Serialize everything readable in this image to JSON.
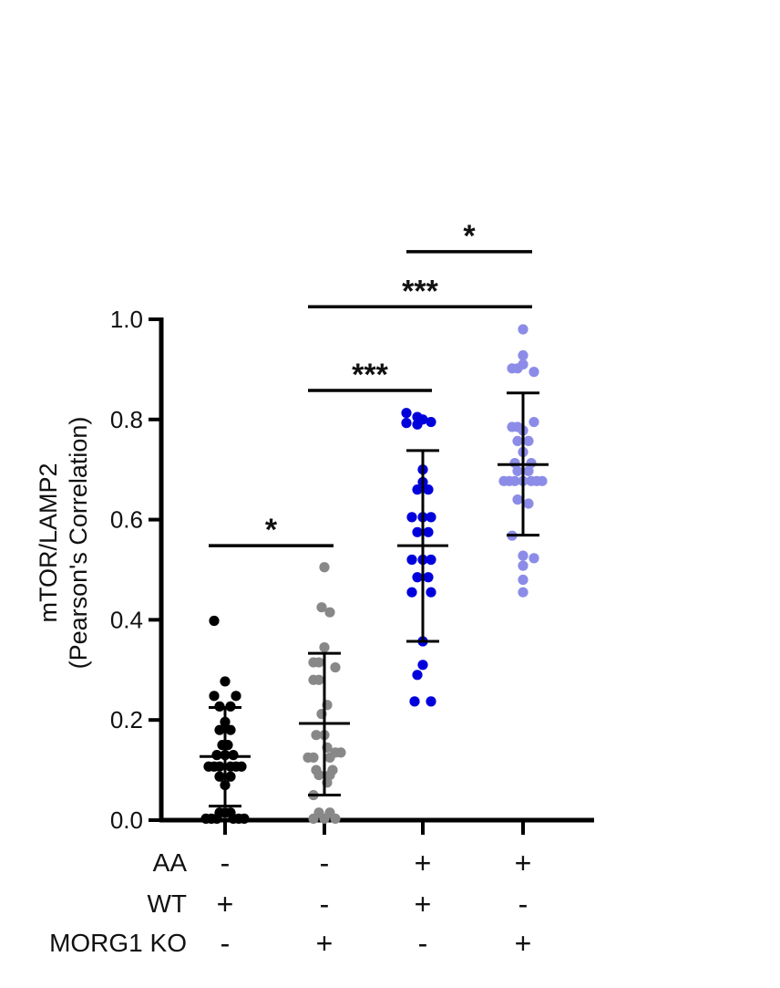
{
  "chart_data": {
    "type": "scatter",
    "title": "",
    "ylabel_line1": "mTOR/LAMP2",
    "ylabel_line2": "(Pearson's Correlation)",
    "ylim": [
      0,
      1.0
    ],
    "yticks": [
      "0.0",
      "0.2",
      "0.4",
      "0.6",
      "0.8",
      "1.0"
    ],
    "ytick_values": [
      0,
      0.2,
      0.4,
      0.6,
      0.8,
      1.0
    ],
    "grid": false,
    "groups": [
      {
        "color": "#000000",
        "mean": 0.127,
        "sd_low": 0.028,
        "sd_high": 0.225,
        "points": [
          {
            "x": -0.6,
            "y": 0.398
          },
          {
            "x": 0.0,
            "y": 0.277
          },
          {
            "x": -0.6,
            "y": 0.248
          },
          {
            "x": 0.6,
            "y": 0.248
          },
          {
            "x": -0.3,
            "y": 0.227
          },
          {
            "x": 0.3,
            "y": 0.227
          },
          {
            "x": 0.0,
            "y": 0.196
          },
          {
            "x": -0.3,
            "y": 0.18
          },
          {
            "x": 0.3,
            "y": 0.18
          },
          {
            "x": -0.15,
            "y": 0.15
          },
          {
            "x": 0.15,
            "y": 0.15
          },
          {
            "x": -0.45,
            "y": 0.13
          },
          {
            "x": 0.0,
            "y": 0.13
          },
          {
            "x": 0.45,
            "y": 0.13
          },
          {
            "x": -0.9,
            "y": 0.107
          },
          {
            "x": -0.6,
            "y": 0.107
          },
          {
            "x": -0.3,
            "y": 0.107
          },
          {
            "x": 0.3,
            "y": 0.107
          },
          {
            "x": 0.6,
            "y": 0.107
          },
          {
            "x": 0.9,
            "y": 0.107
          },
          {
            "x": -0.3,
            "y": 0.087
          },
          {
            "x": 0.3,
            "y": 0.087
          },
          {
            "x": 0.0,
            "y": 0.07
          },
          {
            "x": -0.3,
            "y": 0.015
          },
          {
            "x": 0.0,
            "y": 0.015
          },
          {
            "x": 0.3,
            "y": 0.015
          },
          {
            "x": -1.05,
            "y": 0.003
          },
          {
            "x": -0.75,
            "y": 0.003
          },
          {
            "x": -0.45,
            "y": 0.003
          },
          {
            "x": 0.45,
            "y": 0.003
          },
          {
            "x": 0.75,
            "y": 0.003
          },
          {
            "x": 1.05,
            "y": 0.003
          }
        ]
      },
      {
        "color": "#888888",
        "mean": 0.193,
        "sd_low": 0.05,
        "sd_high": 0.333,
        "points": [
          {
            "x": 0.0,
            "y": 0.505
          },
          {
            "x": -0.15,
            "y": 0.425
          },
          {
            "x": 0.3,
            "y": 0.415
          },
          {
            "x": 0.0,
            "y": 0.345
          },
          {
            "x": -0.6,
            "y": 0.315
          },
          {
            "x": -0.3,
            "y": 0.315
          },
          {
            "x": 0.6,
            "y": 0.305
          },
          {
            "x": -0.6,
            "y": 0.28
          },
          {
            "x": -0.3,
            "y": 0.28
          },
          {
            "x": 0.15,
            "y": 0.23
          },
          {
            "x": -0.15,
            "y": 0.212
          },
          {
            "x": -0.45,
            "y": 0.17
          },
          {
            "x": 0.0,
            "y": 0.17
          },
          {
            "x": 0.15,
            "y": 0.145
          },
          {
            "x": 0.6,
            "y": 0.135
          },
          {
            "x": -0.9,
            "y": 0.125
          },
          {
            "x": -0.6,
            "y": 0.125
          },
          {
            "x": 0.3,
            "y": 0.125
          },
          {
            "x": 0.9,
            "y": 0.135
          },
          {
            "x": -0.45,
            "y": 0.1
          },
          {
            "x": 0.45,
            "y": 0.1
          },
          {
            "x": -0.3,
            "y": 0.09
          },
          {
            "x": 0.3,
            "y": 0.09
          },
          {
            "x": 0.15,
            "y": 0.075
          },
          {
            "x": -0.6,
            "y": 0.05
          },
          {
            "x": -0.3,
            "y": 0.015
          },
          {
            "x": 0.3,
            "y": 0.015
          },
          {
            "x": -0.6,
            "y": 0.003
          },
          {
            "x": 0.0,
            "y": 0.003
          },
          {
            "x": 0.6,
            "y": 0.003
          }
        ]
      },
      {
        "color": "#0000dd",
        "mean": 0.548,
        "sd_low": 0.357,
        "sd_high": 0.738,
        "points": [
          {
            "x": -0.9,
            "y": 0.813
          },
          {
            "x": -0.3,
            "y": 0.805
          },
          {
            "x": 0.0,
            "y": 0.8
          },
          {
            "x": 0.45,
            "y": 0.795
          },
          {
            "x": -0.9,
            "y": 0.793
          },
          {
            "x": -0.3,
            "y": 0.79
          },
          {
            "x": 0.0,
            "y": 0.7
          },
          {
            "x": 0.0,
            "y": 0.675
          },
          {
            "x": -0.3,
            "y": 0.66
          },
          {
            "x": 0.3,
            "y": 0.66
          },
          {
            "x": -0.6,
            "y": 0.605
          },
          {
            "x": 0.0,
            "y": 0.605
          },
          {
            "x": 0.45,
            "y": 0.605
          },
          {
            "x": -0.3,
            "y": 0.575
          },
          {
            "x": 0.3,
            "y": 0.575
          },
          {
            "x": -0.6,
            "y": 0.52
          },
          {
            "x": 0.0,
            "y": 0.52
          },
          {
            "x": 0.45,
            "y": 0.52
          },
          {
            "x": -0.3,
            "y": 0.485
          },
          {
            "x": 0.3,
            "y": 0.485
          },
          {
            "x": -0.6,
            "y": 0.455
          },
          {
            "x": 0.45,
            "y": 0.455
          },
          {
            "x": 0.0,
            "y": 0.357
          },
          {
            "x": 0.0,
            "y": 0.31
          },
          {
            "x": -0.3,
            "y": 0.29
          },
          {
            "x": -0.45,
            "y": 0.237
          },
          {
            "x": 0.45,
            "y": 0.237
          }
        ]
      },
      {
        "color": "#8c8ce8",
        "mean": 0.71,
        "sd_low": 0.569,
        "sd_high": 0.853,
        "points": [
          {
            "x": 0.0,
            "y": 0.98
          },
          {
            "x": 0.0,
            "y": 0.928
          },
          {
            "x": 0.0,
            "y": 0.91
          },
          {
            "x": -0.6,
            "y": 0.902
          },
          {
            "x": -0.3,
            "y": 0.902
          },
          {
            "x": 0.6,
            "y": 0.895
          },
          {
            "x": -0.6,
            "y": 0.785
          },
          {
            "x": -0.3,
            "y": 0.785
          },
          {
            "x": 0.6,
            "y": 0.795
          },
          {
            "x": 0.0,
            "y": 0.778
          },
          {
            "x": -0.3,
            "y": 0.757
          },
          {
            "x": 0.3,
            "y": 0.757
          },
          {
            "x": 0.0,
            "y": 0.735
          },
          {
            "x": -0.45,
            "y": 0.713
          },
          {
            "x": 0.45,
            "y": 0.713
          },
          {
            "x": -0.3,
            "y": 0.697
          },
          {
            "x": 0.3,
            "y": 0.697
          },
          {
            "x": -1.05,
            "y": 0.677
          },
          {
            "x": -0.75,
            "y": 0.677
          },
          {
            "x": -0.45,
            "y": 0.677
          },
          {
            "x": 0.0,
            "y": 0.677
          },
          {
            "x": 0.45,
            "y": 0.677
          },
          {
            "x": 0.75,
            "y": 0.677
          },
          {
            "x": 1.05,
            "y": 0.677
          },
          {
            "x": -0.3,
            "y": 0.64
          },
          {
            "x": 0.3,
            "y": 0.632
          },
          {
            "x": -0.6,
            "y": 0.568
          },
          {
            "x": 0.0,
            "y": 0.528
          },
          {
            "x": 0.6,
            "y": 0.523
          },
          {
            "x": 0.0,
            "y": 0.508
          },
          {
            "x": 0.0,
            "y": 0.48
          },
          {
            "x": 0.0,
            "y": 0.455
          }
        ]
      }
    ],
    "significance": [
      {
        "from": 1,
        "to": 2,
        "label": "*",
        "y": 0.548
      },
      {
        "from": 2,
        "to": 3,
        "label": "***",
        "y": 0.858
      },
      {
        "from": 2,
        "to": 4,
        "label": "***",
        "y": 1.025
      },
      {
        "from": 3,
        "to": 4,
        "label": "*",
        "y": 1.135
      }
    ],
    "conditions": [
      {
        "label": "AA",
        "values": [
          "-",
          "-",
          "+",
          "+"
        ]
      },
      {
        "label": "WT",
        "values": [
          "+",
          "-",
          "+",
          "-"
        ]
      },
      {
        "label": "MORG1 KO",
        "values": [
          "-",
          "+",
          "-",
          "+"
        ]
      }
    ]
  }
}
